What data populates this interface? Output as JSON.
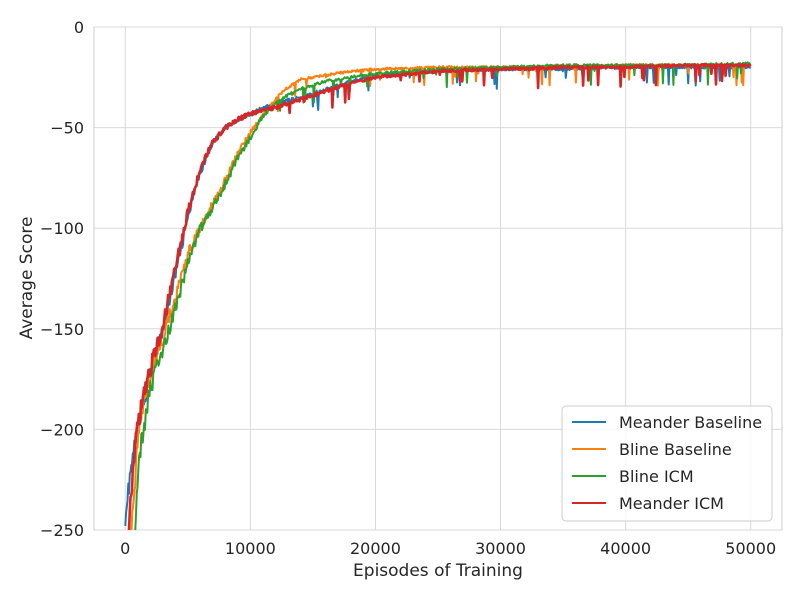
{
  "chart_data": {
    "type": "line",
    "title": "",
    "xlabel": "Episodes of Training",
    "ylabel": "Average Score",
    "xlim": [
      -2500,
      52500
    ],
    "ylim": [
      -250,
      0
    ],
    "xticks": [
      0,
      10000,
      20000,
      30000,
      40000,
      50000
    ],
    "yticks": [
      0,
      -50,
      -100,
      -150,
      -200,
      -250
    ],
    "grid": true,
    "legend_position": "lower-right",
    "series": [
      {
        "name": "Meander Baseline",
        "color": "#1f77b4",
        "x": [
          0,
          500,
          1000,
          1500,
          2000,
          3000,
          4000,
          5000,
          6000,
          7000,
          8000,
          9000,
          10000,
          12000,
          14000,
          16000,
          18000,
          20000,
          25000,
          30000,
          35000,
          40000,
          45000,
          50000
        ],
        "y": [
          -242,
          -218,
          -200,
          -185,
          -172,
          -150,
          -123,
          -95,
          -72,
          -57,
          -50,
          -46,
          -43,
          -38,
          -35,
          -31,
          -27,
          -24,
          -22,
          -21,
          -21,
          -20,
          -20,
          -20
        ]
      },
      {
        "name": "Bline Baseline",
        "color": "#ff7f0e",
        "x": [
          500,
          1000,
          1500,
          2000,
          3000,
          4000,
          5000,
          6000,
          7000,
          8000,
          9000,
          10000,
          11000,
          12000,
          13000,
          14000,
          16000,
          18000,
          20000,
          25000,
          30000,
          35000,
          40000,
          45000,
          50000
        ],
        "y": [
          -250,
          -205,
          -183,
          -172,
          -155,
          -135,
          -113,
          -100,
          -88,
          -76,
          -63,
          -52,
          -44,
          -36,
          -30,
          -26,
          -24,
          -22,
          -21,
          -20,
          -20,
          -20,
          -19,
          -19,
          -19
        ]
      },
      {
        "name": "Bline ICM",
        "color": "#2ca02c",
        "x": [
          800,
          1200,
          2000,
          3000,
          4000,
          5000,
          6000,
          7000,
          8000,
          9000,
          10000,
          11000,
          12000,
          13000,
          14000,
          16000,
          18000,
          20000,
          25000,
          30000,
          35000,
          40000,
          45000,
          50000
        ],
        "y": [
          -245,
          -210,
          -180,
          -160,
          -140,
          -118,
          -100,
          -90,
          -78,
          -65,
          -55,
          -44,
          -38,
          -34,
          -31,
          -27,
          -25,
          -23,
          -21,
          -20,
          -19,
          -19,
          -19,
          -18
        ]
      },
      {
        "name": "Meander ICM",
        "color": "#d62728",
        "x": [
          300,
          700,
          1000,
          1500,
          2000,
          3000,
          4000,
          5000,
          6000,
          7000,
          8000,
          9000,
          10000,
          12000,
          14000,
          16000,
          18000,
          20000,
          25000,
          30000,
          35000,
          40000,
          45000,
          50000
        ],
        "y": [
          -250,
          -215,
          -198,
          -182,
          -170,
          -148,
          -120,
          -92,
          -70,
          -57,
          -50,
          -46,
          -43,
          -40,
          -36,
          -32,
          -28,
          -25,
          -22,
          -21,
          -20,
          -20,
          -19,
          -19
        ]
      }
    ]
  }
}
